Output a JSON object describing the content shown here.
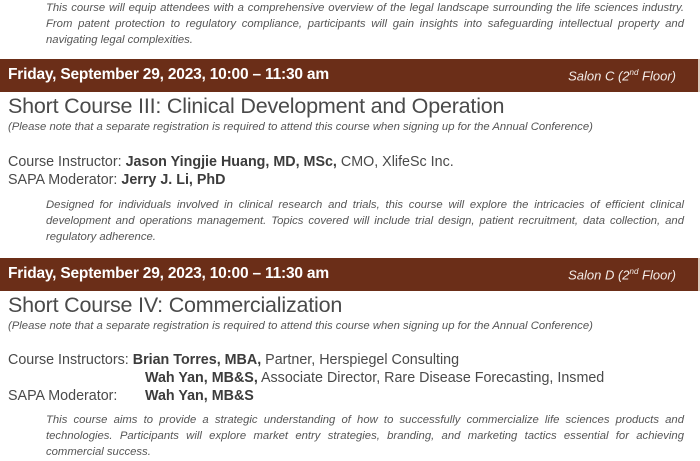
{
  "intro_description": "This course will equip attendees with a comprehensive overview of the legal landscape surrounding the life sciences industry. From patent protection to regulatory compliance, participants will gain insights into safeguarding intellectual property and navigating legal complexities.",
  "colors": {
    "banner": "#6b2e18",
    "text": "#4a4a4a"
  },
  "courses": [
    {
      "date": "Friday, September 29, 2023, 10:00 – 11:30 am",
      "room_prefix": "Salon C (2",
      "room_sup": "nd",
      "room_suffix": " Floor)",
      "title": "Short Course III: Clinical Development and Operation",
      "note": "(Please note that a separate registration is required to attend this course when signing up for the Annual Conference)",
      "instructor_label": "Course Instructor: ",
      "instructors": [
        {
          "name": "Jason Yingjie Huang, MD, MSc,",
          "role": " CMO, XlifeSc Inc."
        }
      ],
      "moderator_label": "SAPA Moderator: ",
      "moderator": "Jerry J. Li, PhD",
      "description": "Designed for individuals involved in clinical research and trials, this course will explore the intricacies of efficient clinical development and operations management. Topics covered will include trial design, patient recruitment, data collection, and regulatory adherence."
    },
    {
      "date": "Friday, September 29, 2023, 10:00 – 11:30 am",
      "room_prefix": "Salon D (2",
      "room_sup": "nd",
      "room_suffix": " Floor)",
      "title": "Short Course IV: Commercialization",
      "note": "(Please note that a separate registration is required to attend this course when signing up for the Annual Conference)",
      "instructor_label": "Course Instructors: ",
      "instructors": [
        {
          "name": "Brian Torres, MBA,",
          "role": " Partner, Herspiegel Consulting"
        },
        {
          "name": "Wah Yan, MB&S,",
          "role": " Associate Director, Rare Disease Forecasting, Insmed"
        }
      ],
      "moderator_label": "SAPA Moderator: ",
      "moderator": "Wah Yan, MB&S",
      "description": "This course aims to provide a strategic understanding of how to successfully commercialize life sciences products and technologies. Participants will explore market entry strategies, branding, and marketing tactics essential for achieving commercial success."
    }
  ]
}
